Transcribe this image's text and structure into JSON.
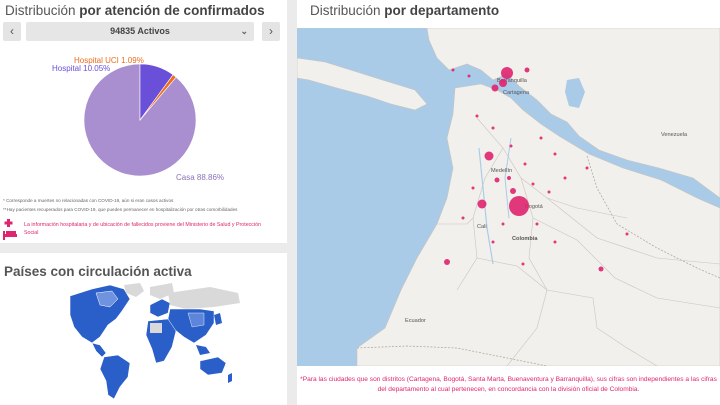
{
  "confirmados": {
    "title_light": "Distribución",
    "title_bold": "por atención de confirmados",
    "selector_value": "94835 Activos",
    "prev_icon": "‹",
    "next_icon": "›",
    "chart_data": {
      "type": "pie",
      "categories": [
        "Casa",
        "Hospital",
        "Hospital UCI"
      ],
      "values": [
        88.86,
        10.05,
        1.09
      ],
      "labels": [
        "Casa 88.86%",
        "Hospital 10.05%",
        "Hospital UCI 1.09%"
      ],
      "colors": [
        "#a98fcf",
        "#6a4fd8",
        "#ef6c1a"
      ]
    },
    "note1": "* Corresponde a muertes no relacionadas con COVID-19, aún si eran casos activos",
    "note2": "**Hay pacientes recuperados para COVID-19, que pueden permanecer en hospitalización por otras comorbilidades",
    "hospital_note": "La información hospitalaria y de ubicación de fallecidos proviene del Ministerio de Salud y Protección Social",
    "hospital_icon": "hospital-bed-icon"
  },
  "paises": {
    "title": "Países con circulación activa"
  },
  "departamentos": {
    "title_light": "Distribución",
    "title_bold": "por departamento",
    "labels": {
      "barranquilla": "Barranquilla",
      "cartagena": "Cartagena",
      "venezuela": "Venezuela",
      "colombia": "Colombia",
      "bogota": "Bogotá",
      "medellin": "Medellín",
      "cali": "Cali",
      "ecuador": "Ecuador"
    },
    "footer": "*Para las ciudades que son distritos (Cartagena, Bogotá, Santa Marta, Buenaventura y Barranquilla), sus cifras son independientes a las cifras del departamento al cual pertenecen, en concordancia con la división oficial de Colombia."
  },
  "colors": {
    "accent": "#e0246f",
    "casa": "#a98fcf",
    "hospital": "#6a4fd8",
    "uci": "#ef6c1a",
    "country_active": "#2a5fc9",
    "land": "#f2f0ec",
    "water": "#aacbe7"
  }
}
